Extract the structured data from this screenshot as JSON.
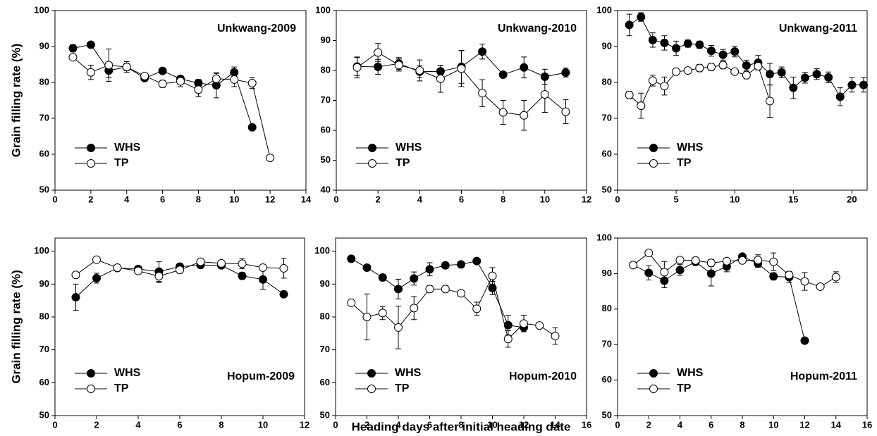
{
  "chart_data": [
    {
      "type": "line",
      "title": "Unkwang-2009",
      "title_loc": "upper right",
      "legend_loc": "lower left",
      "ylabel": "Grain filling rate (%)",
      "xlim": [
        0,
        14
      ],
      "xticks": [
        0,
        2,
        4,
        6,
        8,
        10,
        12,
        14
      ],
      "ylim": [
        50,
        100
      ],
      "yticks": [
        50,
        60,
        70,
        80,
        90,
        100
      ],
      "series": [
        {
          "name": "WHS",
          "color": "#000000",
          "x": [
            1,
            2,
            3,
            4,
            5,
            6,
            7,
            8,
            9,
            10,
            11
          ],
          "values": [
            89.5,
            90.5,
            83.3,
            84.3,
            81.2,
            83.2,
            81,
            79.8,
            79.2,
            82.8,
            67.5
          ],
          "errors": [
            1,
            0.5,
            2,
            1,
            0.5,
            0.8,
            0.8,
            1,
            3.5,
            1.5,
            0
          ]
        },
        {
          "name": "TP",
          "color": "#ffffff",
          "x": [
            1,
            2,
            3,
            4,
            5,
            6,
            7,
            8,
            9,
            10,
            11,
            12
          ],
          "values": [
            87,
            82.8,
            84.8,
            84.3,
            81.8,
            79.6,
            80.3,
            78,
            81,
            80.8,
            79.8,
            59
          ],
          "errors": [
            0.8,
            2,
            4.5,
            1.5,
            0.5,
            1,
            1.5,
            2,
            1.5,
            2,
            1.5,
            0
          ]
        }
      ]
    },
    {
      "type": "line",
      "title": "Unkwang-2010",
      "title_loc": "upper right",
      "legend_loc": "lower left",
      "xlim": [
        0,
        12
      ],
      "xticks": [
        0,
        2,
        4,
        6,
        8,
        10,
        12
      ],
      "ylim": [
        40,
        100
      ],
      "yticks": [
        40,
        50,
        60,
        70,
        80,
        90,
        100
      ],
      "series": [
        {
          "name": "WHS",
          "color": "#000000",
          "x": [
            1,
            2,
            3,
            4,
            5,
            6,
            7,
            8,
            9,
            10,
            11
          ],
          "values": [
            81.3,
            81.2,
            82.3,
            79.6,
            79.7,
            81.2,
            86.3,
            78.6,
            81,
            77.9,
            79.3
          ],
          "errors": [
            3,
            2.5,
            2,
            2,
            2,
            5.5,
            2.5,
            0,
            3.5,
            2.5,
            1.5
          ]
        },
        {
          "name": "TP",
          "color": "#ffffff",
          "x": [
            1,
            2,
            3,
            4,
            5,
            6,
            7,
            8,
            9,
            10,
            11
          ],
          "values": [
            81,
            86,
            81.8,
            80,
            77.2,
            80.6,
            72.4,
            66,
            65,
            72,
            66.2
          ],
          "errors": [
            3.5,
            3,
            2,
            3.5,
            4.5,
            6,
            4.5,
            4,
            5,
            6,
            4
          ]
        }
      ]
    },
    {
      "type": "line",
      "title": "Unkwang-2011",
      "title_loc": "upper right",
      "legend_loc": "lower left",
      "xlim": [
        0,
        21.3
      ],
      "xticks": [
        0,
        5,
        10,
        15,
        20
      ],
      "ylim": [
        50,
        100
      ],
      "yticks": [
        50,
        60,
        70,
        80,
        90,
        100
      ],
      "series": [
        {
          "name": "WHS",
          "color": "#000000",
          "x": [
            1,
            2,
            3,
            4,
            5,
            6,
            7,
            8,
            9,
            10,
            11,
            12,
            13,
            14,
            15,
            16,
            17,
            18,
            19,
            20,
            21
          ],
          "values": [
            96,
            98.2,
            91.8,
            91,
            89.5,
            90.8,
            90.5,
            88.8,
            87.7,
            88.6,
            84.7,
            85.5,
            82.3,
            82.8,
            78.5,
            81.3,
            82.3,
            81.4,
            76,
            79.3,
            79.3
          ],
          "errors": [
            3,
            1.2,
            2,
            2,
            2,
            1,
            1,
            1.5,
            1.5,
            1.5,
            1.5,
            2,
            3,
            1.5,
            3,
            1.5,
            1.5,
            1.5,
            2.5,
            2,
            2
          ]
        },
        {
          "name": "TP",
          "color": "#ffffff",
          "x": [
            1,
            2,
            3,
            4,
            5,
            6,
            7,
            8,
            9,
            10,
            11,
            12,
            13
          ],
          "values": [
            76.5,
            73.5,
            80.5,
            79,
            83,
            83.3,
            84,
            84.3,
            84.8,
            83,
            82,
            84.5,
            74.8
          ],
          "errors": [
            1,
            3.5,
            1.5,
            2.5,
            0.5,
            0.5,
            1,
            1,
            1,
            0.5,
            1,
            1,
            4.5
          ]
        }
      ]
    },
    {
      "type": "line",
      "title": "Hopum-2009",
      "title_loc": "lower right",
      "legend_loc": "lower left",
      "ylabel": "Grain filling rate (%)",
      "xlim": [
        0,
        12
      ],
      "xticks": [
        0,
        2,
        4,
        6,
        8,
        10,
        12
      ],
      "ylim": [
        50,
        104
      ],
      "yticks": [
        50,
        60,
        70,
        80,
        90,
        100
      ],
      "series": [
        {
          "name": "WHS",
          "color": "#000000",
          "x": [
            1,
            2,
            3,
            4,
            5,
            6,
            7,
            8,
            9,
            10,
            11
          ],
          "values": [
            86,
            91.8,
            94.9,
            94.6,
            93.8,
            95.3,
            95.8,
            95.7,
            92.5,
            91.4,
            86.9
          ],
          "errors": [
            4,
            1.5,
            0.8,
            0.8,
            3,
            1,
            0.8,
            0.8,
            1,
            3,
            0
          ]
        },
        {
          "name": "TP",
          "color": "#ffffff",
          "x": [
            1,
            2,
            3,
            4,
            5,
            6,
            7,
            8,
            9,
            10,
            11
          ],
          "values": [
            92.8,
            97.4,
            95,
            94,
            92.4,
            94.3,
            96.8,
            96.3,
            96.2,
            95,
            94.8
          ],
          "errors": [
            0,
            0,
            0.5,
            0.5,
            2,
            1,
            0.5,
            0.5,
            1.5,
            0,
            3
          ]
        }
      ]
    },
    {
      "type": "line",
      "title": "Hopum-2010",
      "title_loc": "lower right",
      "legend_loc": "lower left",
      "xlabel": "Heading days after initial heading date",
      "xlim": [
        0,
        16
      ],
      "xticks": [
        0,
        2,
        4,
        6,
        8,
        10,
        12,
        14,
        16
      ],
      "ylim": [
        50,
        104
      ],
      "yticks": [
        50,
        60,
        70,
        80,
        90,
        100
      ],
      "series": [
        {
          "name": "WHS",
          "color": "#000000",
          "x": [
            1,
            2,
            3,
            4,
            5,
            6,
            7,
            8,
            9,
            10,
            11,
            12
          ],
          "values": [
            97.7,
            95,
            92,
            88.5,
            91.7,
            94.5,
            95.7,
            96,
            97,
            88.8,
            77.5,
            76.8
          ],
          "errors": [
            0,
            0,
            1,
            3,
            2,
            2,
            1,
            0.5,
            0,
            2,
            3,
            0
          ]
        },
        {
          "name": "TP",
          "color": "#ffffff",
          "x": [
            1,
            2,
            3,
            4,
            5,
            6,
            7,
            8,
            9,
            10,
            11,
            12,
            13,
            14
          ],
          "values": [
            84.3,
            80,
            81.2,
            76.8,
            82.7,
            88.5,
            88.5,
            87.2,
            82.5,
            92.5,
            73.3,
            78,
            77.4,
            74.2
          ],
          "errors": [
            0,
            7,
            2,
            6.5,
            3.5,
            1,
            1,
            0,
            2,
            2.5,
            2.5,
            2.5,
            0,
            2.5
          ]
        }
      ]
    },
    {
      "type": "line",
      "title": "Hopum-2011",
      "title_loc": "lower right",
      "legend_loc": "lower left",
      "xlim": [
        0,
        16
      ],
      "xticks": [
        0,
        2,
        4,
        6,
        8,
        10,
        12,
        14,
        16
      ],
      "ylim": [
        50,
        100
      ],
      "yticks": [
        50,
        60,
        70,
        80,
        90,
        100
      ],
      "series": [
        {
          "name": "WHS",
          "color": "#000000",
          "x": [
            1,
            2,
            3,
            4,
            5,
            6,
            7,
            8,
            9,
            10,
            11,
            12
          ],
          "values": [
            92.4,
            90.2,
            88,
            91,
            93.3,
            90,
            92,
            94.8,
            92.8,
            89.2,
            89,
            71.1
          ],
          "errors": [
            0,
            2,
            2,
            1.5,
            1,
            3.5,
            1.5,
            0.5,
            1,
            1,
            1.5,
            0
          ]
        },
        {
          "name": "TP",
          "color": "#ffffff",
          "x": [
            1,
            2,
            3,
            4,
            5,
            6,
            7,
            8,
            9,
            10,
            11,
            12,
            13,
            14
          ],
          "values": [
            92.4,
            95.8,
            90.4,
            93.8,
            93.7,
            93,
            93.5,
            93.7,
            93.8,
            93.3,
            89.6,
            87.8,
            86.3,
            89
          ],
          "errors": [
            0,
            0,
            3,
            0.5,
            0.5,
            1,
            0.5,
            0.5,
            1.5,
            2.5,
            1,
            2.5,
            0,
            1.5
          ]
        }
      ]
    }
  ]
}
